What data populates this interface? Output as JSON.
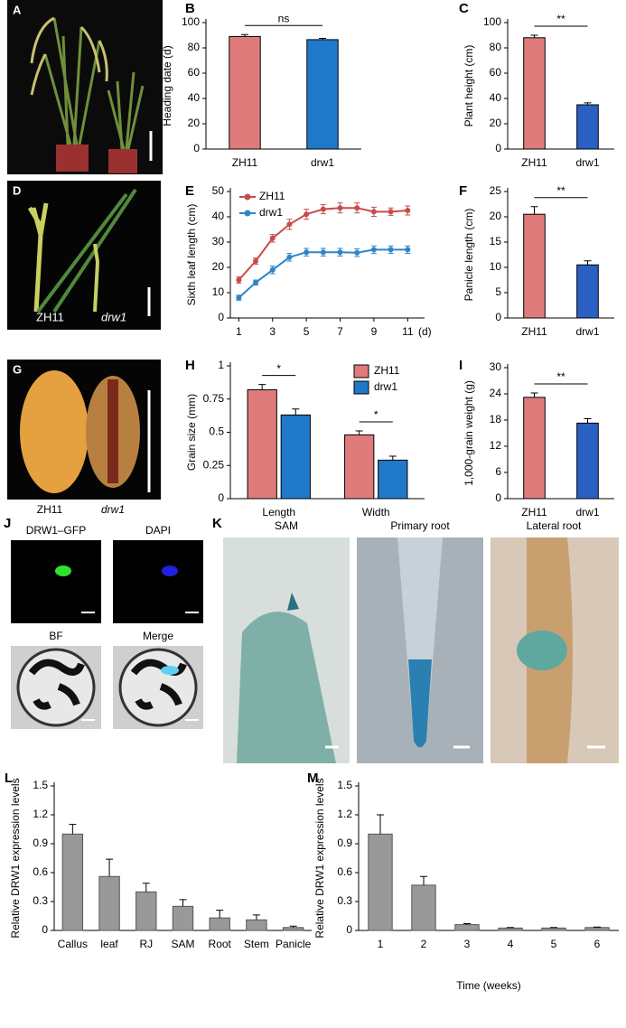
{
  "figures": [
    {
      "panel": "A"
    },
    {
      "panel": "D",
      "labels": [
        "ZH11",
        "drw1"
      ]
    },
    {
      "panel": "G",
      "labels": [
        "ZH11",
        "drw1"
      ]
    },
    {
      "panel": "J",
      "labels": [
        "DRW1–GFP",
        "DAPI",
        "BF",
        "Merge"
      ]
    },
    {
      "panel": "K",
      "labels": [
        "SAM",
        "Primary root",
        "Lateral root"
      ]
    }
  ],
  "chart_data": [
    {
      "type": "bar",
      "panel": "B",
      "ylabel": "Heading date (d)",
      "categories": [
        "ZH11",
        "drw1"
      ],
      "values": [
        89,
        86.5
      ],
      "errors": [
        1.5,
        1
      ],
      "colors": [
        "#e07b7b",
        "#1f78c8"
      ],
      "ylim": [
        0,
        100
      ],
      "yticks": [
        0,
        20,
        40,
        60,
        80,
        100
      ],
      "significance": "ns"
    },
    {
      "type": "bar",
      "panel": "C",
      "ylabel": "Plant height (cm)",
      "categories": [
        "ZH11",
        "drw1"
      ],
      "values": [
        88,
        35
      ],
      "errors": [
        2,
        1.5
      ],
      "colors": [
        "#e07b7b",
        "#2a5fc4"
      ],
      "ylim": [
        0,
        100
      ],
      "yticks": [
        0,
        20,
        40,
        60,
        80,
        100
      ],
      "significance": "**"
    },
    {
      "type": "line",
      "panel": "E",
      "ylabel": "Sixth leaf length (cm)",
      "xlabel": "(d)",
      "x": [
        1,
        2,
        3,
        4,
        5,
        6,
        7,
        8,
        9,
        10,
        11
      ],
      "xlim": [
        0.5,
        12
      ],
      "xticks": [
        1,
        3,
        5,
        7,
        9,
        11
      ],
      "ylim": [
        0,
        50
      ],
      "yticks": [
        0,
        10,
        20,
        30,
        40,
        50
      ],
      "legend": "upper left",
      "series": [
        {
          "name": "ZH11",
          "color": "#c84b4b",
          "values": [
            15,
            22.5,
            31.5,
            37,
            41,
            43,
            43.5,
            43.5,
            42,
            42,
            42.5
          ],
          "errors": [
            1.2,
            1.2,
            1.5,
            2,
            2,
            1.8,
            2,
            2,
            1.8,
            1.5,
            1.8
          ]
        },
        {
          "name": "drw1",
          "color": "#2e86c8",
          "values": [
            8,
            14,
            19,
            24,
            26,
            26,
            26,
            25.8,
            27,
            27,
            27
          ],
          "errors": [
            1,
            1,
            1.5,
            1.5,
            1.5,
            1.5,
            1.5,
            1.5,
            1.5,
            1.5,
            1.5
          ]
        }
      ]
    },
    {
      "type": "bar",
      "panel": "F",
      "ylabel": "Panicle length (cm)",
      "categories": [
        "ZH11",
        "drw1"
      ],
      "values": [
        20.5,
        10.5
      ],
      "errors": [
        1.5,
        0.8
      ],
      "colors": [
        "#e07b7b",
        "#2a5fc4"
      ],
      "ylim": [
        0,
        25
      ],
      "yticks": [
        0,
        5,
        10,
        15,
        20,
        25
      ],
      "significance": "**"
    },
    {
      "type": "bar",
      "panel": "H",
      "ylabel": "Grain size (mm)",
      "categories": [
        "Length",
        "Width"
      ],
      "ylim": [
        0,
        1
      ],
      "yticks": [
        0,
        0.25,
        0.5,
        0.75,
        1
      ],
      "legend": "upper right",
      "significance": [
        "*",
        "*"
      ],
      "series": [
        {
          "name": "ZH11",
          "color": "#e07b7b",
          "values": [
            0.82,
            0.48
          ],
          "errors": [
            0.04,
            0.03
          ]
        },
        {
          "name": "drw1",
          "color": "#1f78c8",
          "values": [
            0.63,
            0.29
          ],
          "errors": [
            0.045,
            0.03
          ]
        }
      ]
    },
    {
      "type": "bar",
      "panel": "I",
      "ylabel": "1,000-grain weight (g)",
      "categories": [
        "ZH11",
        "drw1"
      ],
      "values": [
        23.2,
        17.3
      ],
      "errors": [
        1,
        1
      ],
      "colors": [
        "#e07b7b",
        "#2a5fc4"
      ],
      "ylim": [
        0,
        30
      ],
      "yticks": [
        0,
        6,
        12,
        18,
        24,
        30
      ],
      "significance": "**"
    },
    {
      "type": "bar",
      "panel": "L",
      "ylabel": "Relative DRW1 expression levels",
      "categories": [
        "Callus",
        "leaf",
        "RJ",
        "SAM",
        "Root",
        "Stem",
        "Panicle"
      ],
      "values": [
        1.0,
        0.56,
        0.4,
        0.25,
        0.13,
        0.11,
        0.03
      ],
      "errors": [
        0.1,
        0.18,
        0.09,
        0.07,
        0.08,
        0.05,
        0.015
      ],
      "color": "#999999",
      "ylim": [
        0,
        1.5
      ],
      "yticks": [
        0,
        0.3,
        0.6,
        0.9,
        1.2,
        1.5
      ]
    },
    {
      "type": "bar",
      "panel": "M",
      "ylabel": "Relative DRW1 expression levels",
      "xlabel": "Time (weeks)",
      "categories": [
        "1",
        "2",
        "3",
        "4",
        "5",
        "6"
      ],
      "values": [
        1.0,
        0.47,
        0.06,
        0.025,
        0.025,
        0.03
      ],
      "errors": [
        0.2,
        0.09,
        0.01,
        0.005,
        0.005,
        0.005
      ],
      "color": "#999999",
      "ylim": [
        0,
        1.5
      ],
      "yticks": [
        0,
        0.3,
        0.6,
        0.9,
        1.2,
        1.5
      ]
    }
  ]
}
